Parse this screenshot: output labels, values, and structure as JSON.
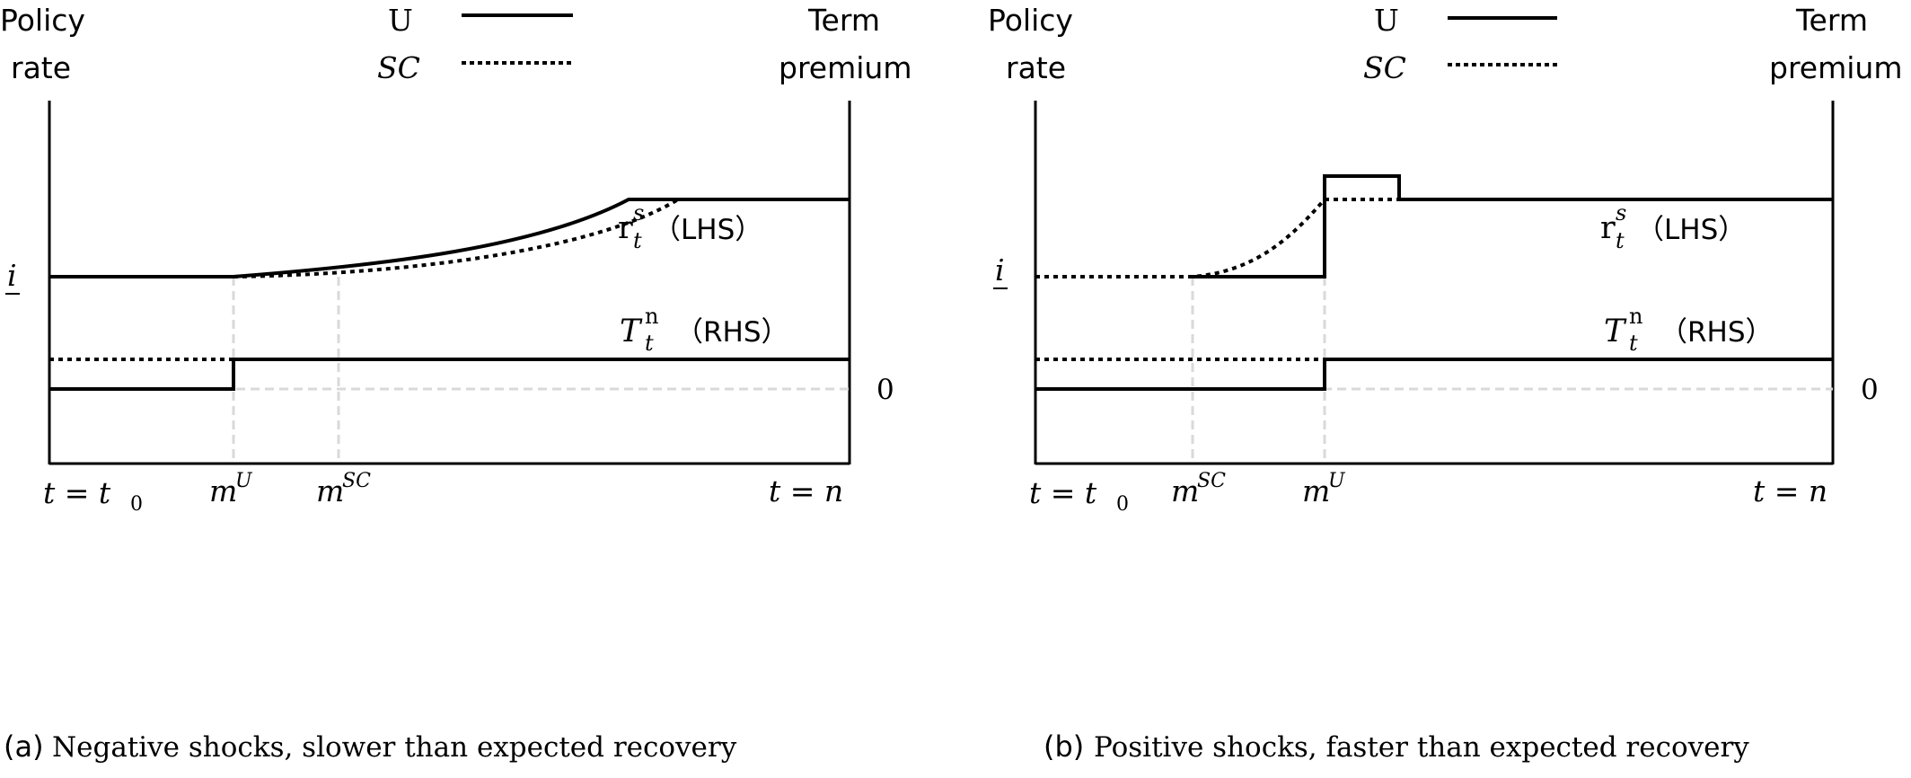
{
  "panels": [
    {
      "left_axis_label_1": "Policy",
      "left_axis_label_2": "rate",
      "right_axis_label_1": "Term",
      "right_axis_label_2": "premium",
      "legend_solid": "U",
      "legend_dotted": "SC",
      "rs_label_sym": "r",
      "rs_sup": "s",
      "rs_sub": "t",
      "rs_side": "（LHS）",
      "tn_label_sym": "T",
      "tn_sup": "n",
      "tn_sub": "t",
      "tn_side": "（RHS）",
      "lower_bound": "i",
      "zero": "0",
      "x_start": "t = t",
      "x_start_sub": "0",
      "x_tick_a": "m",
      "x_tick_a_sup": "U",
      "x_tick_b": "m",
      "x_tick_b_sup": "SC",
      "x_end": "t = n",
      "caption_tag": "(a)",
      "caption_text": "Negative shocks, slower than expected recovery"
    },
    {
      "left_axis_label_1": "Policy",
      "left_axis_label_2": "rate",
      "right_axis_label_1": "Term",
      "right_axis_label_2": "premium",
      "legend_solid": "U",
      "legend_dotted": "SC",
      "rs_label_sym": "r",
      "rs_sup": "s",
      "rs_sub": "t",
      "rs_side": "（LHS）",
      "tn_label_sym": "T",
      "tn_sup": "n",
      "tn_sub": "t",
      "tn_side": "（RHS）",
      "lower_bound": "i",
      "zero": "0",
      "x_start": "t = t",
      "x_start_sub": "0",
      "x_tick_a": "m",
      "x_tick_a_sup": "SC",
      "x_tick_b": "m",
      "x_tick_b_sup": "U",
      "x_end": "t = n",
      "caption_tag": "(b)",
      "caption_text": "Positive shocks, faster than expected recovery"
    }
  ],
  "colors": {
    "line": "#000000",
    "guide": "#d9d9d9"
  }
}
